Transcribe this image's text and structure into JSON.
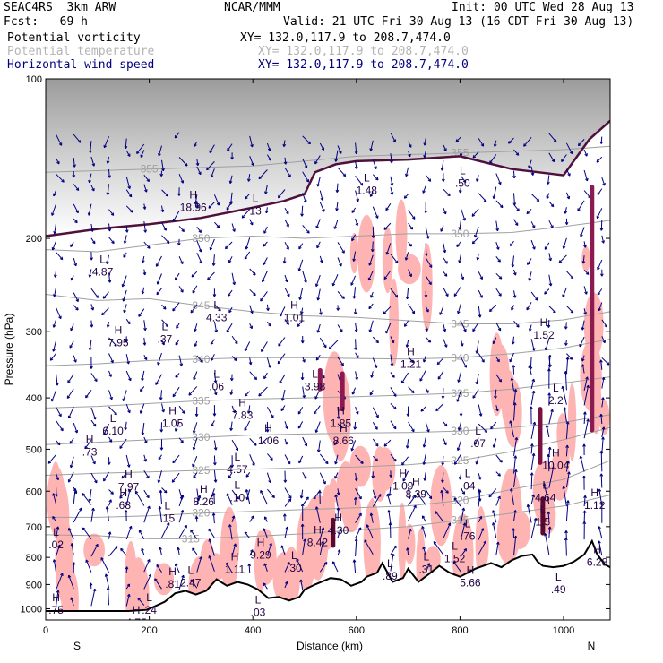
{
  "header": {
    "model": "SEAC4RS  3km ARW",
    "fcst": "Fcst:   69 h",
    "center": "NCAR/MMM",
    "init": "Init: 00 UTC Wed 28 Aug 13",
    "valid": "Valid: 21 UTC Fri 30 Aug 13 (16 CDT Fri 30 Aug 13)",
    "fields": [
      {
        "name": "Potential vorticity",
        "xy": "XY= 132.0,117.9 to 208.7,474.0",
        "color": "#000000"
      },
      {
        "name": "Potential temperature",
        "xy": "XY= 132.0,117.9 to 208.7,474.0",
        "color": "#b4b4b4"
      },
      {
        "name": "Horizontal wind speed",
        "xy": "XY= 132.0,117.9 to 208.7,474.0",
        "color": "#000080"
      }
    ]
  },
  "chart_data": {
    "type": "cross-section",
    "xlabel": "Distance (km)",
    "ylabel": "Pressure (hPa)",
    "xlim": [
      0,
      1090
    ],
    "ylim": [
      1050,
      100
    ],
    "y_log_scale": true,
    "x_ticks": [
      0,
      200,
      400,
      600,
      800,
      1000
    ],
    "y_ticks": [
      100,
      200,
      300,
      400,
      500,
      600,
      700,
      800,
      900,
      1000
    ],
    "x_end_labels": [
      "S",
      "N"
    ],
    "isentropes": [
      {
        "label": "315",
        "points": [
          [
            0,
            725
          ],
          [
            100,
            728
          ],
          [
            200,
            738
          ],
          [
            280,
            738
          ],
          [
            400,
            730
          ],
          [
            500,
            722
          ],
          [
            600,
            710
          ],
          [
            700,
            700
          ],
          [
            800,
            680
          ],
          [
            900,
            660
          ],
          [
            1000,
            640
          ],
          [
            1090,
            610
          ]
        ]
      },
      {
        "label": "320",
        "points": [
          [
            0,
            672
          ],
          [
            100,
            672
          ],
          [
            200,
            668
          ],
          [
            300,
            660
          ],
          [
            400,
            655
          ],
          [
            500,
            650
          ],
          [
            600,
            645
          ],
          [
            700,
            640
          ],
          [
            800,
            625
          ],
          [
            900,
            595
          ],
          [
            1000,
            570
          ],
          [
            1090,
            525
          ]
        ]
      },
      {
        "label": "325",
        "points": [
          [
            0,
            560
          ],
          [
            100,
            555
          ],
          [
            200,
            552
          ],
          [
            300,
            548
          ],
          [
            400,
            545
          ],
          [
            500,
            542
          ],
          [
            600,
            540
          ],
          [
            700,
            535
          ],
          [
            800,
            525
          ],
          [
            900,
            505
          ],
          [
            1000,
            480
          ],
          [
            1090,
            455
          ]
        ]
      },
      {
        "label": "330",
        "points": [
          [
            0,
            490
          ],
          [
            100,
            485
          ],
          [
            200,
            480
          ],
          [
            300,
            475
          ],
          [
            400,
            470
          ],
          [
            500,
            468
          ],
          [
            600,
            466
          ],
          [
            700,
            465
          ],
          [
            800,
            462
          ],
          [
            900,
            455
          ],
          [
            1000,
            445
          ],
          [
            1090,
            430
          ]
        ]
      },
      {
        "label": "335",
        "points": [
          [
            0,
            418
          ],
          [
            100,
            415
          ],
          [
            200,
            410
          ],
          [
            300,
            405
          ],
          [
            400,
            402
          ],
          [
            500,
            400
          ],
          [
            600,
            398
          ],
          [
            700,
            395
          ],
          [
            800,
            392
          ],
          [
            900,
            385
          ],
          [
            1000,
            375
          ],
          [
            1090,
            365
          ]
        ]
      },
      {
        "label": "340",
        "points": [
          [
            0,
            348
          ],
          [
            100,
            345
          ],
          [
            200,
            340
          ],
          [
            300,
            338
          ],
          [
            400,
            336
          ],
          [
            500,
            336
          ],
          [
            600,
            337
          ],
          [
            700,
            338
          ],
          [
            800,
            336
          ],
          [
            900,
            330
          ],
          [
            1000,
            322
          ],
          [
            1090,
            310
          ]
        ]
      },
      {
        "label": "345",
        "points": [
          [
            0,
            255
          ],
          [
            100,
            262
          ],
          [
            200,
            260
          ],
          [
            300,
            268
          ],
          [
            400,
            275
          ],
          [
            500,
            280
          ],
          [
            600,
            282
          ],
          [
            700,
            286
          ],
          [
            800,
            290
          ],
          [
            900,
            290
          ],
          [
            1000,
            285
          ],
          [
            1090,
            275
          ]
        ]
      },
      {
        "label": "350",
        "points": [
          [
            0,
            210
          ],
          [
            100,
            212
          ],
          [
            200,
            206
          ],
          [
            300,
            200
          ],
          [
            400,
            198
          ],
          [
            500,
            200
          ],
          [
            600,
            198
          ],
          [
            700,
            196
          ],
          [
            800,
            196
          ],
          [
            900,
            195
          ],
          [
            1000,
            190
          ],
          [
            1090,
            185
          ]
        ]
      },
      {
        "label": "355",
        "points": [
          [
            0,
            150
          ],
          [
            200,
            148
          ],
          [
            400,
            146
          ],
          [
            600,
            140
          ],
          [
            800,
            138
          ],
          [
            1000,
            136
          ],
          [
            1090,
            134
          ]
        ]
      }
    ],
    "tropopause_2pvu": [
      [
        0,
        198
      ],
      [
        100,
        192
      ],
      [
        200,
        188
      ],
      [
        300,
        183
      ],
      [
        400,
        175
      ],
      [
        460,
        170
      ],
      [
        500,
        165
      ],
      [
        520,
        150
      ],
      [
        560,
        145
      ],
      [
        600,
        143
      ],
      [
        700,
        142
      ],
      [
        800,
        140
      ],
      [
        900,
        148
      ],
      [
        1000,
        152
      ],
      [
        1050,
        130
      ],
      [
        1090,
        120
      ]
    ],
    "terrain": [
      [
        0,
        1010
      ],
      [
        80,
        1010
      ],
      [
        160,
        1010
      ],
      [
        195,
        1005
      ],
      [
        210,
        990
      ],
      [
        230,
        970
      ],
      [
        250,
        935
      ],
      [
        270,
        925
      ],
      [
        290,
        940
      ],
      [
        310,
        925
      ],
      [
        330,
        880
      ],
      [
        350,
        905
      ],
      [
        370,
        890
      ],
      [
        390,
        900
      ],
      [
        410,
        920
      ],
      [
        430,
        955
      ],
      [
        450,
        950
      ],
      [
        470,
        965
      ],
      [
        490,
        950
      ],
      [
        500,
        920
      ],
      [
        520,
        900
      ],
      [
        550,
        875
      ],
      [
        570,
        880
      ],
      [
        590,
        905
      ],
      [
        610,
        890
      ],
      [
        620,
        870
      ],
      [
        640,
        855
      ],
      [
        650,
        820
      ],
      [
        670,
        890
      ],
      [
        690,
        875
      ],
      [
        700,
        840
      ],
      [
        720,
        890
      ],
      [
        740,
        860
      ],
      [
        760,
        830
      ],
      [
        780,
        855
      ],
      [
        800,
        870
      ],
      [
        830,
        840
      ],
      [
        860,
        820
      ],
      [
        880,
        835
      ],
      [
        900,
        810
      ],
      [
        920,
        795
      ],
      [
        940,
        790
      ],
      [
        950,
        815
      ],
      [
        960,
        830
      ],
      [
        980,
        835
      ],
      [
        1000,
        830
      ],
      [
        1020,
        815
      ],
      [
        1040,
        790
      ],
      [
        1055,
        745
      ],
      [
        1065,
        790
      ],
      [
        1080,
        825
      ],
      [
        1090,
        835
      ]
    ],
    "pv_labels": [
      {
        "kind": "H",
        "value": "18.96",
        "x": 285,
        "y": 172
      },
      {
        "kind": "L",
        "value": "13",
        "x": 405,
        "y": 175
      },
      {
        "kind": "L",
        "value": "4.87",
        "x": 110,
        "y": 228
      },
      {
        "kind": "H",
        "value": "1.01",
        "x": 480,
        "y": 278
      },
      {
        "kind": "L",
        "value": "4.33",
        "x": 330,
        "y": 278
      },
      {
        "kind": "H",
        "value": "7.95",
        "x": 140,
        "y": 310
      },
      {
        "kind": "L",
        "value": ".37",
        "x": 230,
        "y": 305
      },
      {
        "kind": "H",
        "value": "1.21",
        "x": 705,
        "y": 340
      },
      {
        "kind": "H",
        "value": "1.52",
        "x": 962,
        "y": 300
      },
      {
        "kind": "L",
        "value": ".06",
        "x": 330,
        "y": 375
      },
      {
        "kind": "L",
        "value": "3.98",
        "x": 520,
        "y": 375
      },
      {
        "kind": "H",
        "value": "7.83",
        "x": 380,
        "y": 425
      },
      {
        "kind": "L",
        "value": "6.10",
        "x": 130,
        "y": 455
      },
      {
        "kind": "H",
        "value": "1.05",
        "x": 245,
        "y": 440
      },
      {
        "kind": "H",
        "value": "1.85",
        "x": 570,
        "y": 440
      },
      {
        "kind": "L",
        "value": "2.2",
        "x": 985,
        "y": 398
      },
      {
        "kind": "H",
        "value": ".73",
        "x": 85,
        "y": 498
      },
      {
        "kind": "H",
        "value": "1.06",
        "x": 430,
        "y": 475
      },
      {
        "kind": "H",
        "value": "8.66",
        "x": 575,
        "y": 475
      },
      {
        "kind": "L",
        "value": ".07",
        "x": 835,
        "y": 480
      },
      {
        "kind": "L",
        "value": "4.57",
        "x": 370,
        "y": 538
      },
      {
        "kind": "H",
        "value": "10.04",
        "x": 985,
        "y": 528
      },
      {
        "kind": "H",
        "value": "7.97",
        "x": 160,
        "y": 580
      },
      {
        "kind": "H",
        "value": "1.09",
        "x": 690,
        "y": 578
      },
      {
        "kind": "L",
        "value": ".04",
        "x": 815,
        "y": 578
      },
      {
        "kind": "H",
        "value": "8.26",
        "x": 305,
        "y": 618
      },
      {
        "kind": "L",
        "value": ".10",
        "x": 370,
        "y": 608
      },
      {
        "kind": "H",
        "value": "8.39",
        "x": 715,
        "y": 598
      },
      {
        "kind": "H",
        "value": ".68",
        "x": 150,
        "y": 628
      },
      {
        "kind": "L",
        "value": "4.64",
        "x": 965,
        "y": 608
      },
      {
        "kind": "H",
        "value": "1.12",
        "x": 1060,
        "y": 628
      },
      {
        "kind": "L",
        "value": ".15",
        "x": 235,
        "y": 665
      },
      {
        "kind": "H",
        "value": "4.30",
        "x": 565,
        "y": 700
      },
      {
        "kind": "L",
        "value": "1.5",
        "x": 960,
        "y": 675
      },
      {
        "kind": "L",
        "value": ".76",
        "x": 815,
        "y": 718
      },
      {
        "kind": "H",
        "value": "8.42",
        "x": 525,
        "y": 738
      },
      {
        "kind": "L",
        "value": ".02",
        "x": 20,
        "y": 745
      },
      {
        "kind": "H",
        "value": "9.29",
        "x": 415,
        "y": 780
      },
      {
        "kind": "L",
        "value": "1.52",
        "x": 790,
        "y": 792
      },
      {
        "kind": "H",
        "value": "6.28",
        "x": 1065,
        "y": 805
      },
      {
        "kind": "H",
        "value": "1.11",
        "x": 365,
        "y": 830
      },
      {
        "kind": "L",
        "value": ".30",
        "x": 480,
        "y": 825
      },
      {
        "kind": "L",
        "value": ".31",
        "x": 735,
        "y": 830
      },
      {
        "kind": "L",
        "value": ".89",
        "x": 665,
        "y": 855
      },
      {
        "kind": "H",
        "value": "5.66",
        "x": 820,
        "y": 880
      },
      {
        "kind": "L",
        "value": "2.47",
        "x": 280,
        "y": 880
      },
      {
        "kind": "H",
        "value": ".81",
        "x": 245,
        "y": 885
      },
      {
        "kind": "L",
        "value": ".49",
        "x": 990,
        "y": 905
      },
      {
        "kind": "H",
        "value": ".75",
        "x": 20,
        "y": 990
      },
      {
        "kind": "L",
        "value": ".24",
        "x": 200,
        "y": 990
      },
      {
        "kind": "L",
        "value": ".03",
        "x": 410,
        "y": 1000
      },
      {
        "kind": "H",
        "value": "4.75",
        "x": 175,
        "y": 1045
      },
      {
        "kind": "L",
        "value": "1.48",
        "x": 620,
        "y": 160
      },
      {
        "kind": "L",
        "value": ".50",
        "x": 805,
        "y": 155
      }
    ],
    "wind_streaks": [
      {
        "x": 1055,
        "y0": 160,
        "y1": 460,
        "color": "#8c1a50"
      },
      {
        "x": 955,
        "y0": 420,
        "y1": 530,
        "color": "#7a1040"
      },
      {
        "x": 960,
        "y0": 620,
        "y1": 720,
        "color": "#5a0830"
      },
      {
        "x": 555,
        "y0": 680,
        "y1": 760,
        "color": "#5a0830"
      },
      {
        "x": 573,
        "y0": 360,
        "y1": 420,
        "color": "#8c1a50"
      },
      {
        "x": 530,
        "y0": 355,
        "y1": 385,
        "color": "#8c1a50"
      }
    ],
    "pv_shading_color": "#ffb4b4",
    "colors": {
      "isentrope": "#a0a0a0",
      "tropopause": "#50103c",
      "wind_vector": "#000080",
      "terrain": "#000000",
      "stratosphere_shade": "#b8b8b8"
    }
  }
}
